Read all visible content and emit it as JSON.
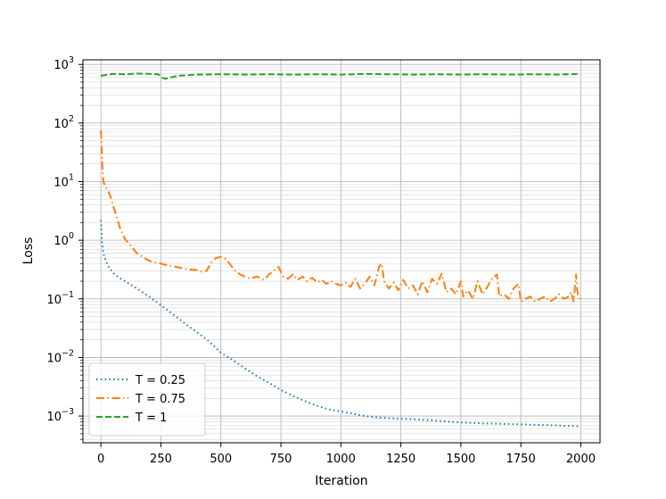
{
  "chart_data": {
    "type": "line",
    "title": "",
    "xlabel": "Iteration",
    "ylabel": "Loss",
    "xlim": [
      -75,
      2080
    ],
    "ylim": [
      0.00035,
      1200
    ],
    "yscale": "log",
    "grid": "major and minor",
    "legend_position": "lower-left",
    "x_ticks": [
      0,
      250,
      500,
      750,
      1000,
      1250,
      1500,
      1750,
      2000
    ],
    "y_ticks": [
      {
        "value": 0.001,
        "base": "10",
        "exp": "−3"
      },
      {
        "value": 0.01,
        "base": "10",
        "exp": "−2"
      },
      {
        "value": 0.1,
        "base": "10",
        "exp": "−1"
      },
      {
        "value": 1,
        "base": "10",
        "exp": "0"
      },
      {
        "value": 10,
        "base": "10",
        "exp": "1"
      },
      {
        "value": 100,
        "base": "10",
        "exp": "2"
      },
      {
        "value": 1000,
        "base": "10",
        "exp": "3"
      }
    ],
    "series": [
      {
        "name": "T =  0.25",
        "color": "#1f77b4",
        "dash": "dotted",
        "points": [
          [
            0,
            2.2
          ],
          [
            5,
            0.9
          ],
          [
            10,
            0.6
          ],
          [
            20,
            0.45
          ],
          [
            30,
            0.36
          ],
          [
            50,
            0.28
          ],
          [
            75,
            0.23
          ],
          [
            100,
            0.2
          ],
          [
            150,
            0.15
          ],
          [
            200,
            0.11
          ],
          [
            250,
            0.078
          ],
          [
            300,
            0.055
          ],
          [
            350,
            0.038
          ],
          [
            400,
            0.027
          ],
          [
            450,
            0.019
          ],
          [
            500,
            0.012
          ],
          [
            550,
            0.009
          ],
          [
            600,
            0.0065
          ],
          [
            650,
            0.0048
          ],
          [
            700,
            0.0037
          ],
          [
            750,
            0.0028
          ],
          [
            800,
            0.0022
          ],
          [
            850,
            0.0018
          ],
          [
            900,
            0.0015
          ],
          [
            950,
            0.0013
          ],
          [
            1000,
            0.0012
          ],
          [
            1050,
            0.0011
          ],
          [
            1100,
            0.001
          ],
          [
            1150,
            0.00095
          ],
          [
            1200,
            0.00092
          ],
          [
            1300,
            0.00088
          ],
          [
            1400,
            0.00083
          ],
          [
            1500,
            0.00078
          ],
          [
            1600,
            0.00075
          ],
          [
            1700,
            0.00073
          ],
          [
            1800,
            0.00071
          ],
          [
            1900,
            0.00069
          ],
          [
            1990,
            0.00067
          ]
        ]
      },
      {
        "name": "T =  0.75",
        "color": "#ff7f0e",
        "dash": "dashdot",
        "points": [
          [
            0,
            75
          ],
          [
            3,
            40
          ],
          [
            6,
            18
          ],
          [
            10,
            10
          ],
          [
            20,
            8
          ],
          [
            30,
            7
          ],
          [
            40,
            5.5
          ],
          [
            50,
            4
          ],
          [
            60,
            3
          ],
          [
            70,
            2.2
          ],
          [
            80,
            1.6
          ],
          [
            90,
            1.3
          ],
          [
            100,
            1.05
          ],
          [
            120,
            0.85
          ],
          [
            150,
            0.6
          ],
          [
            180,
            0.5
          ],
          [
            200,
            0.45
          ],
          [
            220,
            0.42
          ],
          [
            250,
            0.4
          ],
          [
            280,
            0.37
          ],
          [
            300,
            0.36
          ],
          [
            330,
            0.34
          ],
          [
            360,
            0.32
          ],
          [
            400,
            0.31
          ],
          [
            420,
            0.29
          ],
          [
            440,
            0.3
          ],
          [
            460,
            0.42
          ],
          [
            480,
            0.5
          ],
          [
            500,
            0.52
          ],
          [
            520,
            0.48
          ],
          [
            540,
            0.38
          ],
          [
            560,
            0.3
          ],
          [
            580,
            0.26
          ],
          [
            600,
            0.24
          ],
          [
            620,
            0.22
          ],
          [
            650,
            0.24
          ],
          [
            680,
            0.21
          ],
          [
            700,
            0.26
          ],
          [
            720,
            0.3
          ],
          [
            740,
            0.35
          ],
          [
            760,
            0.24
          ],
          [
            780,
            0.22
          ],
          [
            800,
            0.26
          ],
          [
            820,
            0.21
          ],
          [
            840,
            0.24
          ],
          [
            860,
            0.2
          ],
          [
            880,
            0.23
          ],
          [
            900,
            0.19
          ],
          [
            920,
            0.21
          ],
          [
            940,
            0.18
          ],
          [
            960,
            0.2
          ],
          [
            980,
            0.18
          ],
          [
            1000,
            0.17
          ],
          [
            1020,
            0.19
          ],
          [
            1040,
            0.16
          ],
          [
            1060,
            0.22
          ],
          [
            1080,
            0.15
          ],
          [
            1100,
            0.18
          ],
          [
            1120,
            0.24
          ],
          [
            1140,
            0.17
          ],
          [
            1160,
            0.36
          ],
          [
            1170,
            0.4
          ],
          [
            1180,
            0.2
          ],
          [
            1200,
            0.15
          ],
          [
            1220,
            0.19
          ],
          [
            1240,
            0.14
          ],
          [
            1260,
            0.21
          ],
          [
            1280,
            0.15
          ],
          [
            1300,
            0.17
          ],
          [
            1320,
            0.12
          ],
          [
            1340,
            0.2
          ],
          [
            1360,
            0.13
          ],
          [
            1380,
            0.22
          ],
          [
            1400,
            0.18
          ],
          [
            1420,
            0.27
          ],
          [
            1440,
            0.13
          ],
          [
            1460,
            0.15
          ],
          [
            1480,
            0.12
          ],
          [
            1500,
            0.2
          ],
          [
            1510,
            0.11
          ],
          [
            1530,
            0.14
          ],
          [
            1550,
            0.1
          ],
          [
            1570,
            0.2
          ],
          [
            1590,
            0.12
          ],
          [
            1610,
            0.16
          ],
          [
            1630,
            0.22
          ],
          [
            1650,
            0.26
          ],
          [
            1660,
            0.11
          ],
          [
            1680,
            0.12
          ],
          [
            1700,
            0.1
          ],
          [
            1720,
            0.15
          ],
          [
            1740,
            0.18
          ],
          [
            1750,
            0.09
          ],
          [
            1770,
            0.1
          ],
          [
            1790,
            0.11
          ],
          [
            1810,
            0.09
          ],
          [
            1830,
            0.1
          ],
          [
            1850,
            0.11
          ],
          [
            1870,
            0.09
          ],
          [
            1890,
            0.1
          ],
          [
            1910,
            0.12
          ],
          [
            1930,
            0.1
          ],
          [
            1950,
            0.11
          ],
          [
            1960,
            0.13
          ],
          [
            1970,
            0.09
          ],
          [
            1980,
            0.26
          ],
          [
            1985,
            0.14
          ],
          [
            1990,
            0.11
          ],
          [
            1995,
            0.1
          ]
        ]
      },
      {
        "name": "T =  1",
        "color": "#2ca02c",
        "dash": "dashed",
        "points": [
          [
            0,
            640
          ],
          [
            20,
            660
          ],
          [
            50,
            690
          ],
          [
            100,
            680
          ],
          [
            150,
            700
          ],
          [
            200,
            690
          ],
          [
            240,
            680
          ],
          [
            255,
            590
          ],
          [
            270,
            570
          ],
          [
            290,
            600
          ],
          [
            320,
            640
          ],
          [
            400,
            670
          ],
          [
            500,
            680
          ],
          [
            600,
            670
          ],
          [
            700,
            680
          ],
          [
            800,
            670
          ],
          [
            900,
            680
          ],
          [
            1000,
            670
          ],
          [
            1100,
            690
          ],
          [
            1200,
            680
          ],
          [
            1300,
            670
          ],
          [
            1400,
            680
          ],
          [
            1500,
            670
          ],
          [
            1600,
            680
          ],
          [
            1700,
            670
          ],
          [
            1800,
            680
          ],
          [
            1900,
            670
          ],
          [
            1990,
            690
          ]
        ]
      }
    ]
  }
}
